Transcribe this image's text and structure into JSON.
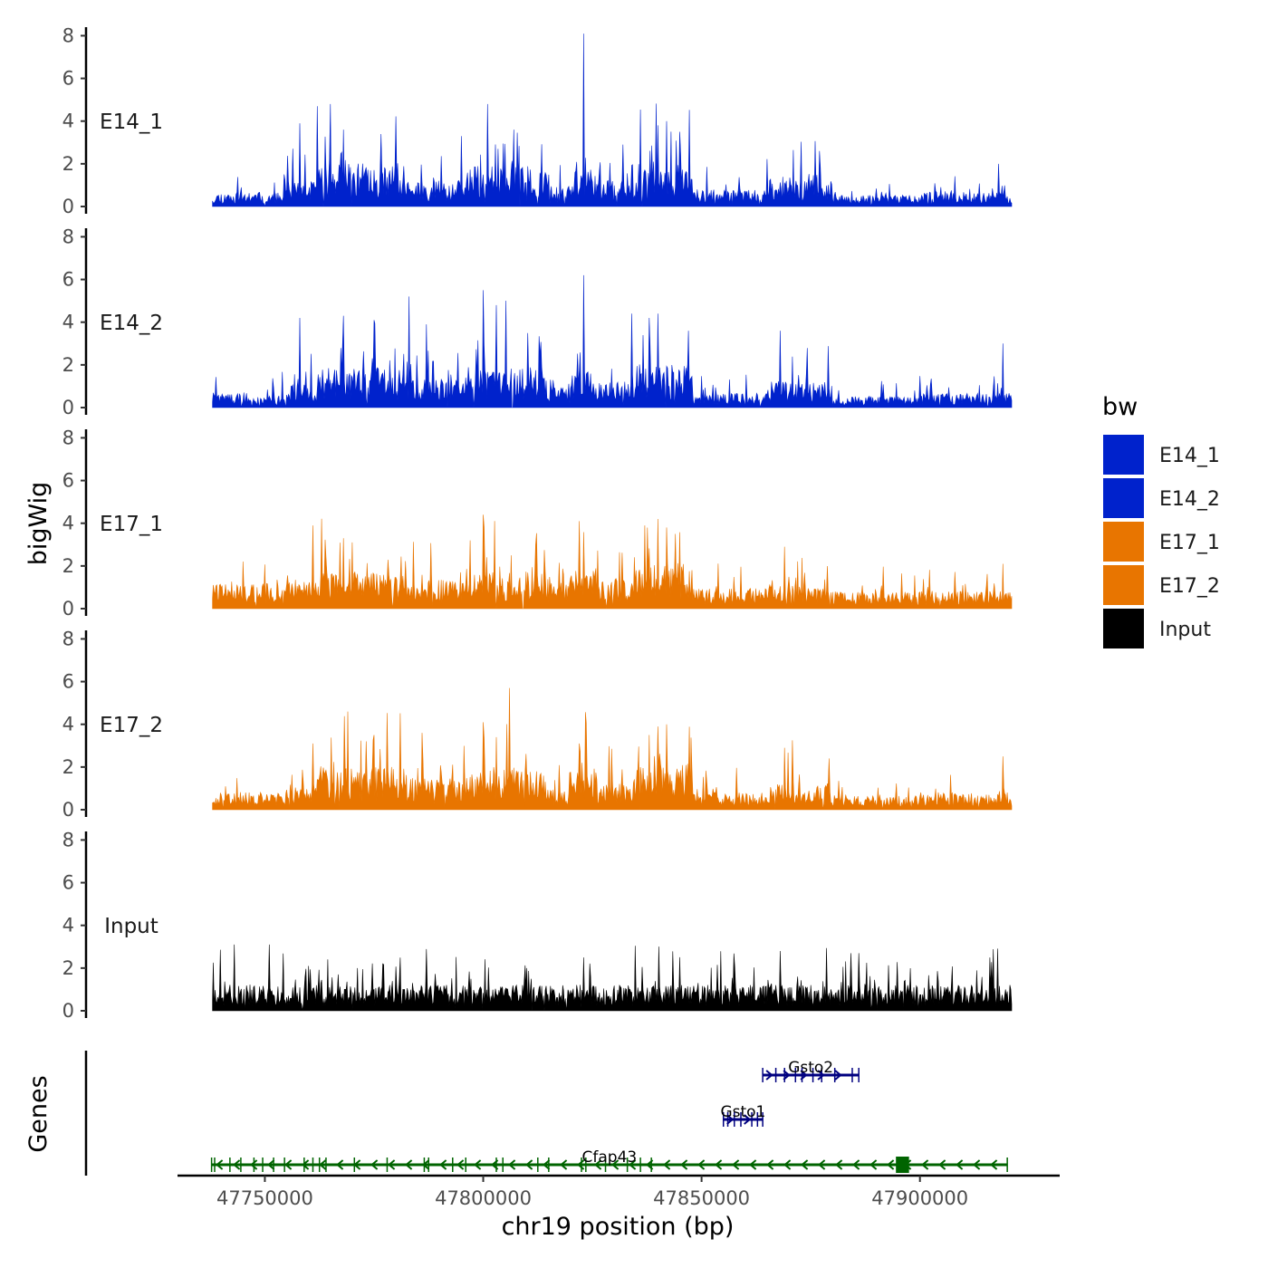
{
  "chart_data": {
    "type": "area",
    "chromosome": "chr19",
    "xlabel": "chr19 position (bp)",
    "ylabel": "bigWig",
    "genes_label": "Genes",
    "xlim": [
      47730000,
      47932000
    ],
    "data_range": [
      47738000,
      47921000
    ],
    "x_ticks": [
      47750000,
      47800000,
      47850000,
      47900000
    ],
    "x_tick_labels": [
      "47750000",
      "47800000",
      "47850000",
      "47900000"
    ],
    "ylim": [
      0,
      8.4
    ],
    "y_ticks": [
      0,
      2,
      4,
      6,
      8
    ],
    "y_tick_labels": [
      "0",
      "2",
      "4",
      "6",
      "8"
    ],
    "legend": {
      "title": "bw",
      "entries": [
        {
          "label": "E14_1",
          "color": "#0022CC"
        },
        {
          "label": "E14_2",
          "color": "#0022CC"
        },
        {
          "label": "E17_1",
          "color": "#E87500"
        },
        {
          "label": "E17_2",
          "color": "#E87500"
        },
        {
          "label": "Input",
          "color": "#000000"
        }
      ]
    },
    "series": [
      {
        "name": "E14_1",
        "color": "#0022CC",
        "seed": 11,
        "regions": [
          [
            47738000,
            47755000,
            0.5
          ],
          [
            47755000,
            47762000,
            0.9
          ],
          [
            47762000,
            47782000,
            1.5
          ],
          [
            47782000,
            47797000,
            0.9
          ],
          [
            47797000,
            47815000,
            1.4
          ],
          [
            47815000,
            47820000,
            0.7
          ],
          [
            47820000,
            47826000,
            1.3
          ],
          [
            47826000,
            47835000,
            0.9
          ],
          [
            47835000,
            47848000,
            1.5
          ],
          [
            47848000,
            47865000,
            0.6
          ],
          [
            47865000,
            47880000,
            0.9
          ],
          [
            47880000,
            47900000,
            0.4
          ],
          [
            47900000,
            47921000,
            0.5
          ]
        ],
        "peaks": [
          [
            47762000,
            4.7
          ],
          [
            47765000,
            4.8
          ],
          [
            47758000,
            3.9
          ],
          [
            47768000,
            3.6
          ],
          [
            47801000,
            4.8
          ],
          [
            47795000,
            3.3
          ],
          [
            47807000,
            3.6
          ],
          [
            47823000,
            8.1
          ],
          [
            47832000,
            2.9
          ],
          [
            47840000,
            3.8
          ],
          [
            47842000,
            4.0
          ],
          [
            47845000,
            3.5
          ],
          [
            47877000,
            2.6
          ],
          [
            47918000,
            2.0
          ]
        ]
      },
      {
        "name": "E14_2",
        "color": "#0022CC",
        "seed": 22,
        "regions": [
          [
            47738000,
            47755000,
            0.5
          ],
          [
            47755000,
            47762000,
            0.8
          ],
          [
            47762000,
            47782000,
            1.4
          ],
          [
            47782000,
            47797000,
            1.0
          ],
          [
            47797000,
            47815000,
            1.4
          ],
          [
            47815000,
            47820000,
            0.7
          ],
          [
            47820000,
            47826000,
            1.3
          ],
          [
            47826000,
            47835000,
            0.9
          ],
          [
            47835000,
            47848000,
            1.5
          ],
          [
            47848000,
            47865000,
            0.5
          ],
          [
            47865000,
            47880000,
            0.9
          ],
          [
            47880000,
            47900000,
            0.4
          ],
          [
            47900000,
            47921000,
            0.5
          ]
        ],
        "peaks": [
          [
            47758000,
            4.2
          ],
          [
            47768000,
            4.3
          ],
          [
            47775000,
            4.1
          ],
          [
            47783000,
            5.2
          ],
          [
            47787000,
            3.9
          ],
          [
            47800000,
            5.5
          ],
          [
            47803000,
            4.8
          ],
          [
            47823000,
            6.2
          ],
          [
            47834000,
            4.4
          ],
          [
            47838000,
            4.2
          ],
          [
            47840000,
            4.4
          ],
          [
            47847000,
            3.6
          ],
          [
            47868000,
            3.6
          ],
          [
            47919000,
            3.0
          ]
        ]
      },
      {
        "name": "E17_1",
        "color": "#E87500",
        "seed": 33,
        "regions": [
          [
            47738000,
            47755000,
            0.9
          ],
          [
            47755000,
            47762000,
            1.0
          ],
          [
            47762000,
            47782000,
            1.3
          ],
          [
            47782000,
            47797000,
            1.0
          ],
          [
            47797000,
            47815000,
            1.3
          ],
          [
            47815000,
            47820000,
            0.9
          ],
          [
            47820000,
            47826000,
            1.4
          ],
          [
            47826000,
            47835000,
            1.1
          ],
          [
            47835000,
            47848000,
            1.6
          ],
          [
            47848000,
            47865000,
            0.7
          ],
          [
            47865000,
            47880000,
            0.8
          ],
          [
            47880000,
            47900000,
            0.6
          ],
          [
            47900000,
            47921000,
            0.6
          ]
        ],
        "peaks": [
          [
            47761000,
            3.9
          ],
          [
            47768000,
            3.3
          ],
          [
            47770000,
            3.1
          ],
          [
            47800000,
            4.4
          ],
          [
            47797000,
            3.2
          ],
          [
            47812000,
            3.0
          ],
          [
            47822000,
            4.1
          ],
          [
            47840000,
            4.2
          ],
          [
            47837000,
            3.9
          ],
          [
            47842000,
            3.8
          ],
          [
            47844000,
            3.5
          ],
          [
            47869000,
            2.9
          ],
          [
            47919000,
            2.1
          ]
        ]
      },
      {
        "name": "E17_2",
        "color": "#E87500",
        "seed": 44,
        "regions": [
          [
            47738000,
            47755000,
            0.6
          ],
          [
            47755000,
            47762000,
            0.9
          ],
          [
            47762000,
            47782000,
            1.5
          ],
          [
            47782000,
            47797000,
            1.1
          ],
          [
            47797000,
            47815000,
            1.5
          ],
          [
            47815000,
            47820000,
            0.7
          ],
          [
            47820000,
            47826000,
            1.3
          ],
          [
            47826000,
            47835000,
            1.1
          ],
          [
            47835000,
            47848000,
            1.6
          ],
          [
            47848000,
            47865000,
            0.6
          ],
          [
            47865000,
            47880000,
            0.9
          ],
          [
            47880000,
            47900000,
            0.5
          ],
          [
            47900000,
            47921000,
            0.6
          ]
        ],
        "peaks": [
          [
            47761000,
            3.1
          ],
          [
            47769000,
            4.6
          ],
          [
            47775000,
            3.5
          ],
          [
            47786000,
            3.6
          ],
          [
            47800000,
            4.1
          ],
          [
            47806000,
            5.7
          ],
          [
            47803000,
            3.4
          ],
          [
            47822000,
            3.1
          ],
          [
            47840000,
            3.9
          ],
          [
            47842000,
            4.0
          ],
          [
            47838000,
            3.5
          ],
          [
            47869000,
            2.9
          ],
          [
            47919000,
            2.5
          ]
        ]
      },
      {
        "name": "Input",
        "color": "#000000",
        "seed": 55,
        "regions": [
          [
            47738000,
            47921000,
            0.9
          ]
        ],
        "peaks": [
          [
            47743000,
            3.1
          ],
          [
            47751000,
            3.1
          ],
          [
            47760000,
            2.1
          ],
          [
            47777000,
            2.2
          ],
          [
            47810000,
            2.0
          ],
          [
            47823000,
            2.5
          ],
          [
            47868000,
            2.8
          ],
          [
            47886000,
            2.7
          ],
          [
            47916000,
            2.5
          ]
        ]
      }
    ],
    "genes": [
      {
        "name": "Gsto2",
        "strand": "+",
        "start": 47864000,
        "end": 47886000,
        "row": 0,
        "color": "#000080",
        "exons": [
          47864000,
          47867000,
          47869000,
          47871500,
          47873000,
          47875500,
          47877500,
          47880500,
          47884500,
          47886000
        ],
        "cds": []
      },
      {
        "name": "Gsto1",
        "strand": "+",
        "start": 47855000,
        "end": 47864000,
        "row": 1,
        "color": "#000080",
        "exons": [
          47855000,
          47856000,
          47857500,
          47859000,
          47861500,
          47862800,
          47864000
        ],
        "cds": []
      },
      {
        "name": "Cfap43",
        "strand": "-",
        "start": 47737800,
        "end": 47920000,
        "row": 2,
        "color": "#006400",
        "exons": [
          47737800,
          47738500,
          47742000,
          47744500,
          47747500,
          47749500,
          47752000,
          47754500,
          47759000,
          47761000,
          47762500,
          47764000,
          47770500,
          47778000,
          47786500,
          47787500,
          47793000,
          47796000,
          47803000,
          47804500,
          47812500,
          47815000,
          47822500,
          47823500,
          47828000,
          47833000,
          47836000,
          47838500,
          47920000
        ],
        "cds": [
          [
            47894500,
            47897500
          ]
        ]
      }
    ]
  }
}
